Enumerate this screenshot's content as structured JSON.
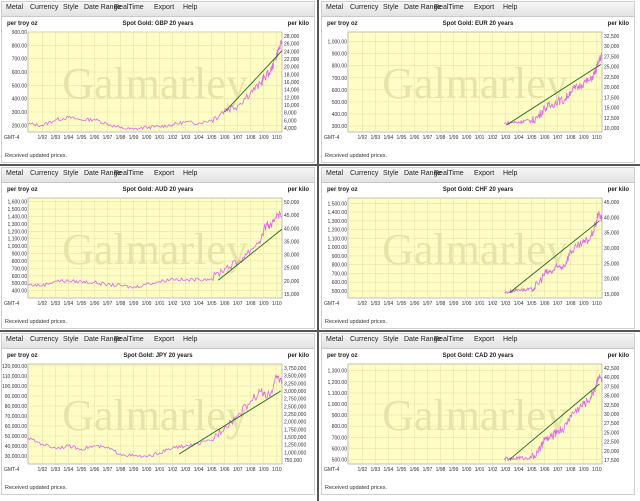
{
  "menu": [
    "Metal",
    "Currency",
    "Style",
    "Date Range",
    "RealTime",
    "Export",
    "Help"
  ],
  "status_text": "Received updated prices.",
  "timezone_label": "GMT-4",
  "watermark": "Galmarley",
  "left_unit": "per troy oz",
  "right_unit": "per kilo",
  "colors": {
    "plot_bg": "#fffdc6",
    "grid": "#e6e3a8",
    "price": "#e066e8",
    "trend": "#1b6b1b",
    "watermark": "#e5e2a6"
  },
  "x_ticks": [
    "1/92",
    "1/93",
    "1/94",
    "1/95",
    "1/96",
    "1/97",
    "1/98",
    "1/99",
    "1/00",
    "1/01",
    "1/02",
    "1/03",
    "1/04",
    "1/05",
    "1/06",
    "1/07",
    "1/08",
    "1/09",
    "1/10"
  ],
  "chart_data": [
    {
      "type": "line",
      "title": "Spot Gold: GBP 20 years",
      "x_start": 1990.9,
      "x_end": 2010.4,
      "y_ticks": [
        200,
        300,
        400,
        500,
        600,
        700,
        800,
        900
      ],
      "ylim": [
        150,
        900
      ],
      "right_ticks": [
        "4,000",
        "6,000",
        "8,000",
        "10,000",
        "12,000",
        "14,000",
        "16,000",
        "18,000",
        "20,000",
        "22,000",
        "24,000",
        "26,000",
        "28,000"
      ],
      "points": [
        [
          1990.9,
          210
        ],
        [
          1992,
          200
        ],
        [
          1993,
          240
        ],
        [
          1994,
          260
        ],
        [
          1995,
          240
        ],
        [
          1996,
          245
        ],
        [
          1997,
          210
        ],
        [
          1998,
          180
        ],
        [
          1999,
          170
        ],
        [
          2000,
          185
        ],
        [
          2001,
          190
        ],
        [
          2002,
          205
        ],
        [
          2003,
          225
        ],
        [
          2004,
          215
        ],
        [
          2005,
          240
        ],
        [
          2006,
          315
        ],
        [
          2007,
          350
        ],
        [
          2008,
          450
        ],
        [
          2008.8,
          510
        ],
        [
          2009,
          560
        ],
        [
          2009.5,
          600
        ],
        [
          2009.9,
          700
        ],
        [
          2010.1,
          760
        ],
        [
          2010.4,
          820
        ]
      ],
      "trend": [
        [
          2006.0,
          300
        ],
        [
          2010.4,
          760
        ]
      ]
    },
    {
      "type": "line",
      "title": "Spot Gold: EUR 20 years",
      "x_start": 1990.9,
      "x_end": 2010.4,
      "y_ticks": [
        300,
        400,
        500,
        600,
        700,
        800,
        900,
        1000
      ],
      "ylim": [
        250,
        1080
      ],
      "right_ticks": [
        "10,000",
        "12,500",
        "15,000",
        "17,500",
        "20,000",
        "22,500",
        "25,000",
        "27,500",
        "30,000",
        "32,500"
      ],
      "points": [
        [
          2002.9,
          320
        ],
        [
          2003.5,
          330
        ],
        [
          2004,
          330
        ],
        [
          2004.5,
          345
        ],
        [
          2005,
          340
        ],
        [
          2005.5,
          380
        ],
        [
          2006,
          450
        ],
        [
          2006.5,
          470
        ],
        [
          2007,
          510
        ],
        [
          2007.5,
          510
        ],
        [
          2008,
          590
        ],
        [
          2008.5,
          620
        ],
        [
          2009,
          660
        ],
        [
          2009.5,
          680
        ],
        [
          2009.9,
          750
        ],
        [
          2010.1,
          820
        ],
        [
          2010.4,
          900
        ]
      ],
      "trend": [
        [
          2003.1,
          310
        ],
        [
          2010.3,
          810
        ]
      ]
    },
    {
      "type": "line",
      "title": "Spot Gold: AUD 20 years",
      "x_start": 1990.9,
      "x_end": 2010.4,
      "y_ticks": [
        400,
        500,
        600,
        700,
        800,
        900,
        1000,
        1100,
        1200,
        1300,
        1400,
        1500,
        1600
      ],
      "ylim": [
        300,
        1650
      ],
      "right_ticks": [
        "15,000",
        "20,000",
        "25,000",
        "30,000",
        "35,000",
        "40,000",
        "45,000",
        "50,000"
      ],
      "points": [
        [
          1990.9,
          480
        ],
        [
          1992,
          470
        ],
        [
          1993,
          530
        ],
        [
          1994,
          530
        ],
        [
          1995,
          520
        ],
        [
          1996,
          510
        ],
        [
          1997,
          480
        ],
        [
          1998,
          470
        ],
        [
          1999,
          440
        ],
        [
          2000,
          490
        ],
        [
          2001,
          520
        ],
        [
          2002,
          560
        ],
        [
          2003,
          540
        ],
        [
          2004,
          550
        ],
        [
          2005,
          560
        ],
        [
          2006,
          700
        ],
        [
          2007,
          780
        ],
        [
          2008,
          950
        ],
        [
          2008.8,
          1100
        ],
        [
          2009.2,
          1300
        ],
        [
          2009.6,
          1250
        ],
        [
          2010.0,
          1450
        ],
        [
          2010.4,
          1400
        ]
      ],
      "trend": [
        [
          2005.5,
          540
        ],
        [
          2010.4,
          1230
        ]
      ]
    },
    {
      "type": "line",
      "title": "Spot Gold: CHF 20 years",
      "x_start": 1990.9,
      "x_end": 2010.4,
      "y_ticks": [
        500,
        600,
        700,
        800,
        900,
        1000,
        1100,
        1200,
        1300,
        1400,
        1500
      ],
      "ylim": [
        420,
        1560
      ],
      "right_ticks": [
        "15,000",
        "20,000",
        "25,000",
        "30,000",
        "35,000",
        "40,000",
        "45,000"
      ],
      "points": [
        [
          2002.9,
          480
        ],
        [
          2003.5,
          500
        ],
        [
          2004,
          520
        ],
        [
          2004.5,
          510
        ],
        [
          2005,
          520
        ],
        [
          2005.5,
          580
        ],
        [
          2006,
          700
        ],
        [
          2006.5,
          720
        ],
        [
          2007,
          770
        ],
        [
          2007.5,
          790
        ],
        [
          2008,
          950
        ],
        [
          2008.5,
          1000
        ],
        [
          2009,
          1050
        ],
        [
          2009.5,
          1100
        ],
        [
          2009.9,
          1250
        ],
        [
          2010.1,
          1380
        ],
        [
          2010.4,
          1320
        ]
      ],
      "trend": [
        [
          2003.3,
          480
        ],
        [
          2010.2,
          1300
        ]
      ]
    },
    {
      "type": "line",
      "title": "Spot Gold: JPY 20 years",
      "x_start": 1990.9,
      "x_end": 2010.4,
      "y_ticks": [
        30000,
        40000,
        50000,
        60000,
        70000,
        80000,
        90000,
        100000,
        110000,
        120000
      ],
      "ylim": [
        22000,
        122000
      ],
      "right_ticks": [
        "750,000",
        "1,000,000",
        "1,250,000",
        "1,500,000",
        "1,750,000",
        "2,000,000",
        "2,250,000",
        "2,500,000",
        "2,750,000",
        "3,000,000",
        "3,250,000",
        "3,500,000",
        "3,750,000"
      ],
      "points": [
        [
          1990.9,
          48000
        ],
        [
          1992,
          42000
        ],
        [
          1993,
          38000
        ],
        [
          1994,
          40000
        ],
        [
          1995,
          37000
        ],
        [
          1996,
          40000
        ],
        [
          1997,
          38000
        ],
        [
          1998,
          32000
        ],
        [
          1999,
          30000
        ],
        [
          2000,
          29000
        ],
        [
          2001,
          33000
        ],
        [
          2002,
          38000
        ],
        [
          2003,
          40000
        ],
        [
          2004,
          42000
        ],
        [
          2005,
          46000
        ],
        [
          2006,
          60000
        ],
        [
          2007,
          70000
        ],
        [
          2008,
          85000
        ],
        [
          2008.8,
          95000
        ],
        [
          2009.2,
          88000
        ],
        [
          2009.6,
          95000
        ],
        [
          2010.0,
          110000
        ],
        [
          2010.4,
          105000
        ]
      ],
      "trend": [
        [
          2002.5,
          32000
        ],
        [
          2010.3,
          95000
        ]
      ]
    },
    {
      "type": "line",
      "title": "Spot Gold: CAD 20 years",
      "x_start": 1990.9,
      "x_end": 2010.4,
      "y_ticks": [
        500,
        600,
        700,
        800,
        900,
        1000,
        1100,
        1200,
        1300
      ],
      "ylim": [
        460,
        1360
      ],
      "right_ticks": [
        "17,500",
        "20,000",
        "22,500",
        "25,000",
        "27,500",
        "30,000",
        "32,500",
        "35,000",
        "37,500",
        "40,000",
        "42,500"
      ],
      "points": [
        [
          2002.9,
          510
        ],
        [
          2003.5,
          500
        ],
        [
          2004,
          520
        ],
        [
          2004.5,
          510
        ],
        [
          2005,
          520
        ],
        [
          2005.5,
          560
        ],
        [
          2006,
          680
        ],
        [
          2006.5,
          700
        ],
        [
          2007,
          760
        ],
        [
          2007.5,
          780
        ],
        [
          2008,
          900
        ],
        [
          2008.5,
          950
        ],
        [
          2009,
          1000
        ],
        [
          2009.5,
          1050
        ],
        [
          2009.9,
          1150
        ],
        [
          2010.1,
          1250
        ],
        [
          2010.4,
          1220
        ]
      ],
      "trend": [
        [
          2003.3,
          500
        ],
        [
          2010.2,
          1180
        ]
      ]
    }
  ]
}
